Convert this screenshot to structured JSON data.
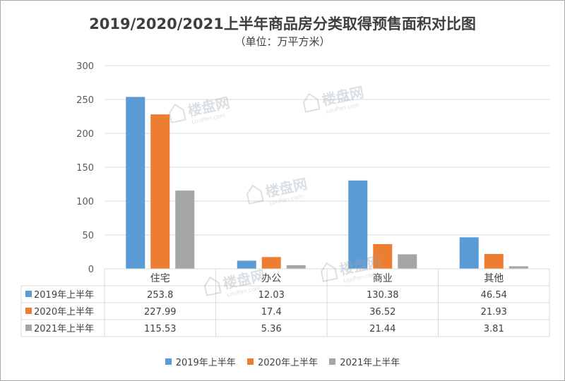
{
  "title": "2019/2020/2021上半年商品房分类取得预售面积对比图",
  "subtitle": "（单位：万平方米）",
  "watermark_text": "楼盘网",
  "watermark_sub": "LouPan.com",
  "chart_data": {
    "type": "bar",
    "title": "2019/2020/2021上半年商品房分类取得预售面积对比图",
    "subtitle": "（单位：万平方米）",
    "categories": [
      "住宅",
      "办公",
      "商业",
      "其他"
    ],
    "series": [
      {
        "name": "2019年上半年",
        "color": "#5b9bd5",
        "values": [
          253.8,
          12.03,
          130.38,
          46.54
        ],
        "labels": [
          "253.8",
          "12.03",
          "130.38",
          "46.54"
        ]
      },
      {
        "name": "2020年上半年",
        "color": "#ed7d31",
        "values": [
          227.99,
          17.4,
          36.52,
          21.93
        ],
        "labels": [
          "227.99",
          "17.4",
          "36.52",
          "21.93"
        ]
      },
      {
        "name": "2021年上半年",
        "color": "#a5a5a5",
        "values": [
          115.53,
          5.36,
          21.44,
          3.81
        ],
        "labels": [
          "115.53",
          "5.36",
          "21.44",
          "3.81"
        ]
      }
    ],
    "ylim": [
      0,
      300
    ],
    "yticks": [
      0,
      50,
      100,
      150,
      200,
      250,
      300
    ],
    "grid": true,
    "data_table": true,
    "legend_position": "bottom"
  }
}
